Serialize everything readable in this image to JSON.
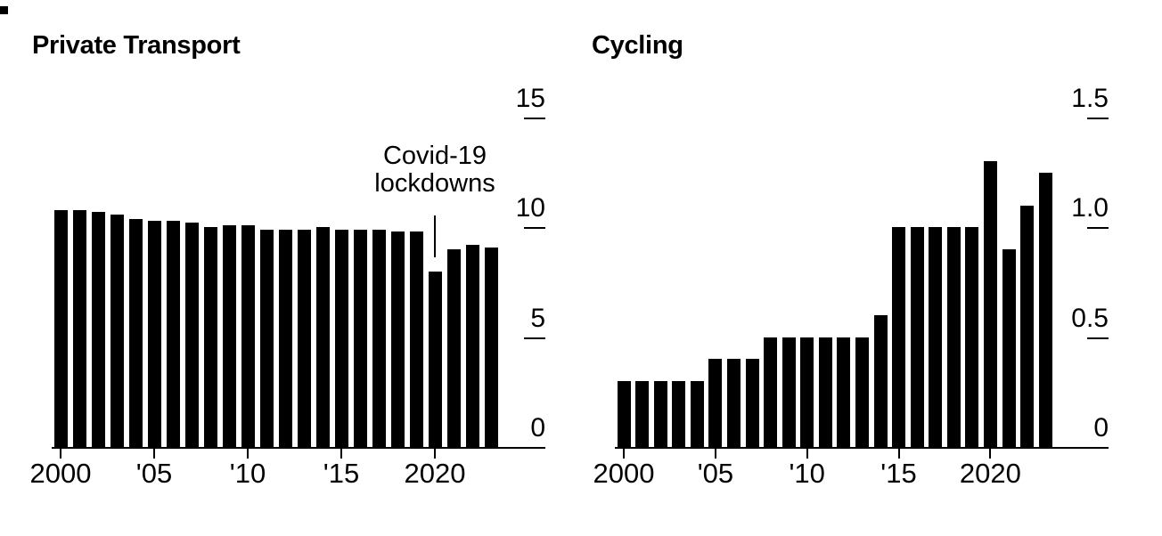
{
  "page": {
    "background": "#ffffff",
    "text_color": "#000000",
    "bar_color": "#000000"
  },
  "chart_data": [
    {
      "type": "bar",
      "title": "Private Transport",
      "categories": [
        2000,
        2001,
        2002,
        2003,
        2004,
        2005,
        2006,
        2007,
        2008,
        2009,
        2010,
        2011,
        2012,
        2013,
        2014,
        2015,
        2016,
        2017,
        2018,
        2019,
        2020,
        2021,
        2022,
        2023
      ],
      "values": [
        10.8,
        10.8,
        10.7,
        10.6,
        10.4,
        10.3,
        10.3,
        10.2,
        10.0,
        10.1,
        10.1,
        9.9,
        9.9,
        9.9,
        10.0,
        9.9,
        9.9,
        9.9,
        9.8,
        9.8,
        8.0,
        9.0,
        9.2,
        9.1
      ],
      "ylim": [
        0,
        15
      ],
      "y_ticks": [
        {
          "label": "15",
          "value": 15
        },
        {
          "label": "10",
          "value": 10
        },
        {
          "label": "5",
          "value": 5
        },
        {
          "label": "0",
          "value": 0
        }
      ],
      "x_ticks": [
        {
          "label": "2000",
          "year": 2000
        },
        {
          "label": "'05",
          "year": 2005
        },
        {
          "label": "'10",
          "year": 2010
        },
        {
          "label": "'15",
          "year": 2015
        },
        {
          "label": "2020",
          "year": 2020
        }
      ],
      "bar_color": "#000000",
      "grid": false,
      "legend": null,
      "annotation": {
        "lines": [
          "Covid-19",
          "lockdowns"
        ],
        "target_year": 2020
      }
    },
    {
      "type": "bar",
      "title": "Cycling",
      "categories": [
        2000,
        2001,
        2002,
        2003,
        2004,
        2005,
        2006,
        2007,
        2008,
        2009,
        2010,
        2011,
        2012,
        2013,
        2014,
        2015,
        2016,
        2017,
        2018,
        2019,
        2020,
        2021,
        2022,
        2023
      ],
      "values": [
        0.3,
        0.3,
        0.3,
        0.3,
        0.3,
        0.4,
        0.4,
        0.4,
        0.5,
        0.5,
        0.5,
        0.5,
        0.5,
        0.5,
        0.6,
        1.0,
        1.0,
        1.0,
        1.0,
        1.0,
        1.3,
        0.9,
        1.1,
        1.25
      ],
      "ylim": [
        0,
        1.5
      ],
      "y_ticks": [
        {
          "label": "1.5",
          "value": 1.5
        },
        {
          "label": "1.0",
          "value": 1.0
        },
        {
          "label": "0.5",
          "value": 0.5
        },
        {
          "label": "0",
          "value": 0
        }
      ],
      "x_ticks": [
        {
          "label": "2000",
          "year": 2000
        },
        {
          "label": "'05",
          "year": 2005
        },
        {
          "label": "'10",
          "year": 2010
        },
        {
          "label": "'15",
          "year": 2015
        },
        {
          "label": "2020",
          "year": 2020
        }
      ],
      "bar_color": "#000000",
      "grid": false,
      "legend": null,
      "annotation": null
    }
  ]
}
